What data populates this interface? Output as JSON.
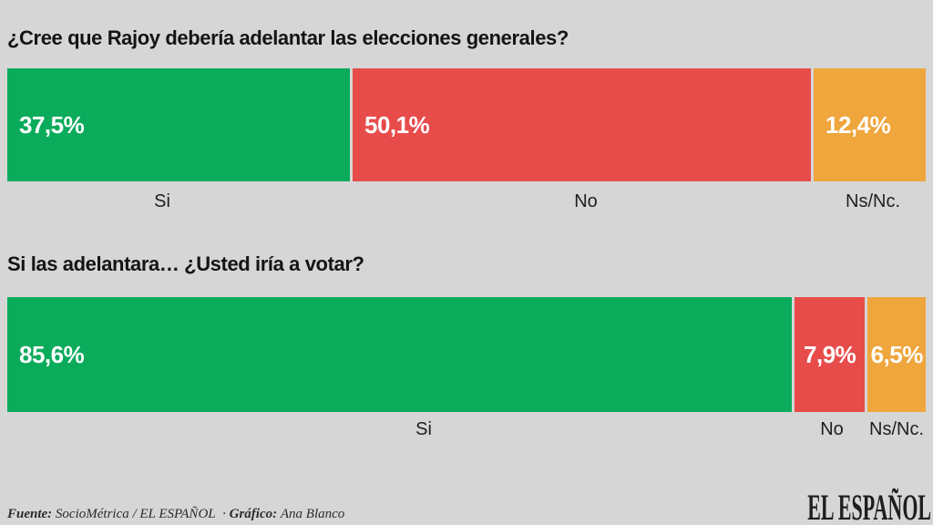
{
  "page": {
    "background": "#d6d6d6",
    "text_color": "#141414"
  },
  "chart_data": [
    {
      "type": "bar",
      "orientation": "horizontal-stacked",
      "title": "¿Cree que Rajoy debería adelantar las elecciones generales?",
      "categories": [
        "Si",
        "No",
        "Ns/Nc."
      ],
      "values": [
        37.5,
        50.1,
        12.4
      ],
      "value_labels": [
        "37,5%",
        "50,1%",
        "12,4%"
      ],
      "colors": [
        "#0bab5c",
        "#e74c4b",
        "#efa63d"
      ],
      "unit": "%",
      "xlim": [
        0,
        100
      ],
      "grid": false,
      "legend": "none"
    },
    {
      "type": "bar",
      "orientation": "horizontal-stacked",
      "title": "Si las adelantara… ¿Usted iría a votar?",
      "categories": [
        "Si",
        "No",
        "Ns/Nc."
      ],
      "values": [
        85.6,
        7.9,
        6.5
      ],
      "value_labels": [
        "85,6%",
        "7,9%",
        "6,5%"
      ],
      "colors": [
        "#0bab5c",
        "#e74c4b",
        "#efa63d"
      ],
      "unit": "%",
      "xlim": [
        0,
        100
      ],
      "grid": false,
      "legend": "none"
    }
  ],
  "footer": {
    "source_label": "Fuente:",
    "source_value": "SocioMétrica / EL ESPAÑOL",
    "separator": "·",
    "credit_label": "Gráfico:",
    "credit_value": "Ana Blanco",
    "logo_text": "EL ESPAÑOL"
  }
}
